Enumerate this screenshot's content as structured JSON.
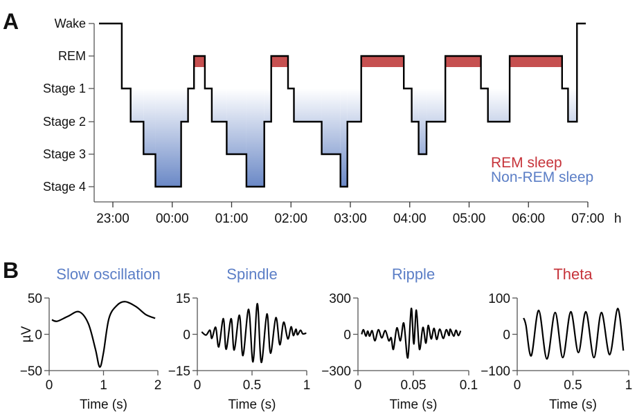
{
  "panel_a": {
    "letter": "A",
    "legend": {
      "rem": "REM sleep",
      "nrem": "Non-REM sleep"
    },
    "colors": {
      "rem": "#c65050",
      "nrem_dark": "#6a88c6",
      "rem_text": "#c6333a",
      "nrem_text": "#5b7ec6"
    }
  },
  "panel_b": {
    "letter": "B"
  },
  "chart_data": [
    {
      "type": "line",
      "subtype": "hypnogram",
      "ylabels": [
        "Wake",
        "REM",
        "Stage 1",
        "Stage 2",
        "Stage 3",
        "Stage 4"
      ],
      "xticks": [
        "23:00",
        "00:00",
        "01:00",
        "02:00",
        "03:00",
        "04:00",
        "05:00",
        "06:00",
        "07:00"
      ],
      "xunit": "h",
      "xlim": [
        "23:00",
        "07:00"
      ],
      "legend": [
        "REM sleep",
        "Non-REM sleep"
      ],
      "legend_position": "bottom-right",
      "segments": [
        {
          "t": "22:46",
          "stage": "Wake"
        },
        {
          "t": "23:09",
          "stage": "Stage 1"
        },
        {
          "t": "23:18",
          "stage": "Stage 2"
        },
        {
          "t": "23:31",
          "stage": "Stage 3"
        },
        {
          "t": "23:43",
          "stage": "Stage 4"
        },
        {
          "t": "00:09",
          "stage": "Stage 2"
        },
        {
          "t": "00:16",
          "stage": "Stage 1"
        },
        {
          "t": "00:22",
          "stage": "REM"
        },
        {
          "t": "00:33",
          "stage": "Stage 1"
        },
        {
          "t": "00:40",
          "stage": "Stage 2"
        },
        {
          "t": "00:55",
          "stage": "Stage 3"
        },
        {
          "t": "01:15",
          "stage": "Stage 4"
        },
        {
          "t": "01:33",
          "stage": "Stage 2"
        },
        {
          "t": "01:40",
          "stage": "REM"
        },
        {
          "t": "01:57",
          "stage": "Stage 1"
        },
        {
          "t": "02:03",
          "stage": "Stage 2"
        },
        {
          "t": "02:31",
          "stage": "Stage 3"
        },
        {
          "t": "02:50",
          "stage": "Stage 4"
        },
        {
          "t": "02:57",
          "stage": "Stage 2"
        },
        {
          "t": "03:11",
          "stage": "REM"
        },
        {
          "t": "03:54",
          "stage": "Stage 1"
        },
        {
          "t": "04:02",
          "stage": "Stage 2"
        },
        {
          "t": "04:09",
          "stage": "Stage 3"
        },
        {
          "t": "04:17",
          "stage": "Stage 2"
        },
        {
          "t": "04:36",
          "stage": "REM"
        },
        {
          "t": "05:12",
          "stage": "Stage 1"
        },
        {
          "t": "05:19",
          "stage": "Stage 2"
        },
        {
          "t": "05:41",
          "stage": "REM"
        },
        {
          "t": "06:34",
          "stage": "Stage 1"
        },
        {
          "t": "06:40",
          "stage": "Stage 2"
        },
        {
          "t": "06:49",
          "stage": "Wake"
        }
      ],
      "end": "06:58"
    },
    {
      "type": "line",
      "title": "Slow oscillation",
      "title_color": "#5b7ec6",
      "ylabel": "µV",
      "xlabel": "Time (s)",
      "xlim": [
        0,
        2
      ],
      "ylim": [
        -50,
        50
      ],
      "xticks": [
        "0",
        "1",
        "2"
      ],
      "yticks": [
        "50",
        "0",
        "−50"
      ],
      "points": [
        [
          0.05,
          20
        ],
        [
          0.15,
          18
        ],
        [
          0.35,
          25
        ],
        [
          0.55,
          31
        ],
        [
          0.72,
          15
        ],
        [
          0.85,
          -20
        ],
        [
          0.93,
          -45
        ],
        [
          1.0,
          -25
        ],
        [
          1.1,
          22
        ],
        [
          1.25,
          40
        ],
        [
          1.4,
          45
        ],
        [
          1.6,
          38
        ],
        [
          1.78,
          27
        ],
        [
          1.95,
          22
        ]
      ]
    },
    {
      "type": "line",
      "title": "Spindle",
      "title_color": "#5b7ec6",
      "xlabel": "Time (s)",
      "xlim": [
        0,
        1
      ],
      "ylim": [
        -15,
        15
      ],
      "xticks": [
        "0",
        "0.5",
        "1"
      ],
      "yticks": [
        "15",
        "0",
        "−15"
      ],
      "points": [
        [
          0.04,
          1
        ],
        [
          0.08,
          -0.3
        ],
        [
          0.116,
          1.7
        ],
        [
          0.133,
          -1.7
        ],
        [
          0.168,
          2.9
        ],
        [
          0.196,
          -5.2
        ],
        [
          0.238,
          6.5
        ],
        [
          0.263,
          -6.2
        ],
        [
          0.309,
          6.5
        ],
        [
          0.337,
          -6.5
        ],
        [
          0.385,
          7.9
        ],
        [
          0.417,
          -8.8
        ],
        [
          0.469,
          10.3
        ],
        [
          0.509,
          -11.4
        ],
        [
          0.549,
          12.7
        ],
        [
          0.585,
          -11.6
        ],
        [
          0.636,
          8.4
        ],
        [
          0.669,
          -7.8
        ],
        [
          0.718,
          6.9
        ],
        [
          0.754,
          -4.3
        ],
        [
          0.789,
          5
        ],
        [
          0.827,
          -1.9
        ],
        [
          0.857,
          3.1
        ],
        [
          0.878,
          -0.5
        ],
        [
          0.901,
          2.1
        ],
        [
          0.916,
          -0.2
        ],
        [
          0.943,
          1.7
        ],
        [
          0.964,
          0.2
        ],
        [
          0.996,
          0.5
        ]
      ]
    },
    {
      "type": "line",
      "title": "Ripple",
      "title_color": "#5b7ec6",
      "xlabel": "Time (s)",
      "xlim": [
        0,
        0.1
      ],
      "ylim": [
        -300,
        300
      ],
      "xticks": [
        "0",
        "0.05",
        "0.1"
      ],
      "yticks": [
        "300",
        "0",
        "−300"
      ],
      "points": [
        [
          0.0033,
          0
        ],
        [
          0.005,
          38
        ],
        [
          0.0071,
          -15
        ],
        [
          0.0088,
          27
        ],
        [
          0.0105,
          -15
        ],
        [
          0.0128,
          29
        ],
        [
          0.0153,
          -53
        ],
        [
          0.0184,
          38
        ],
        [
          0.0215,
          -29
        ],
        [
          0.0247,
          31
        ],
        [
          0.0278,
          -53
        ],
        [
          0.03,
          -29
        ],
        [
          0.032,
          -124
        ],
        [
          0.0351,
          53
        ],
        [
          0.0383,
          -53
        ],
        [
          0.0414,
          92
        ],
        [
          0.045,
          -195
        ],
        [
          0.0481,
          214
        ],
        [
          0.0504,
          -80
        ],
        [
          0.0527,
          200
        ],
        [
          0.0555,
          -124
        ],
        [
          0.0586,
          57
        ],
        [
          0.0613,
          -73
        ],
        [
          0.0634,
          73
        ],
        [
          0.0661,
          -38
        ],
        [
          0.0686,
          50
        ],
        [
          0.0711,
          -42
        ],
        [
          0.0738,
          42
        ],
        [
          0.077,
          -34
        ],
        [
          0.0797,
          38
        ],
        [
          0.0822,
          -10
        ],
        [
          0.0833,
          42
        ],
        [
          0.0864,
          -15
        ],
        [
          0.0885,
          34
        ],
        [
          0.0906,
          -10
        ],
        [
          0.0927,
          29
        ]
      ]
    },
    {
      "type": "line",
      "title": "Theta",
      "title_color": "#c6333a",
      "xlabel": "Time (s)",
      "xlim": [
        0,
        1
      ],
      "ylim": [
        -100,
        100
      ],
      "xticks": [
        "0",
        "0.5",
        "1"
      ],
      "yticks": [
        "100",
        "0",
        "−100"
      ],
      "points": [
        [
          0.057,
          45
        ],
        [
          0.078,
          25
        ],
        [
          0.126,
          -59
        ],
        [
          0.193,
          66
        ],
        [
          0.266,
          -68
        ],
        [
          0.34,
          60
        ],
        [
          0.409,
          -64
        ],
        [
          0.48,
          62
        ],
        [
          0.549,
          -50
        ],
        [
          0.616,
          62
        ],
        [
          0.688,
          -64
        ],
        [
          0.755,
          60
        ],
        [
          0.83,
          -56
        ],
        [
          0.901,
          71
        ],
        [
          0.952,
          -45
        ]
      ]
    }
  ]
}
